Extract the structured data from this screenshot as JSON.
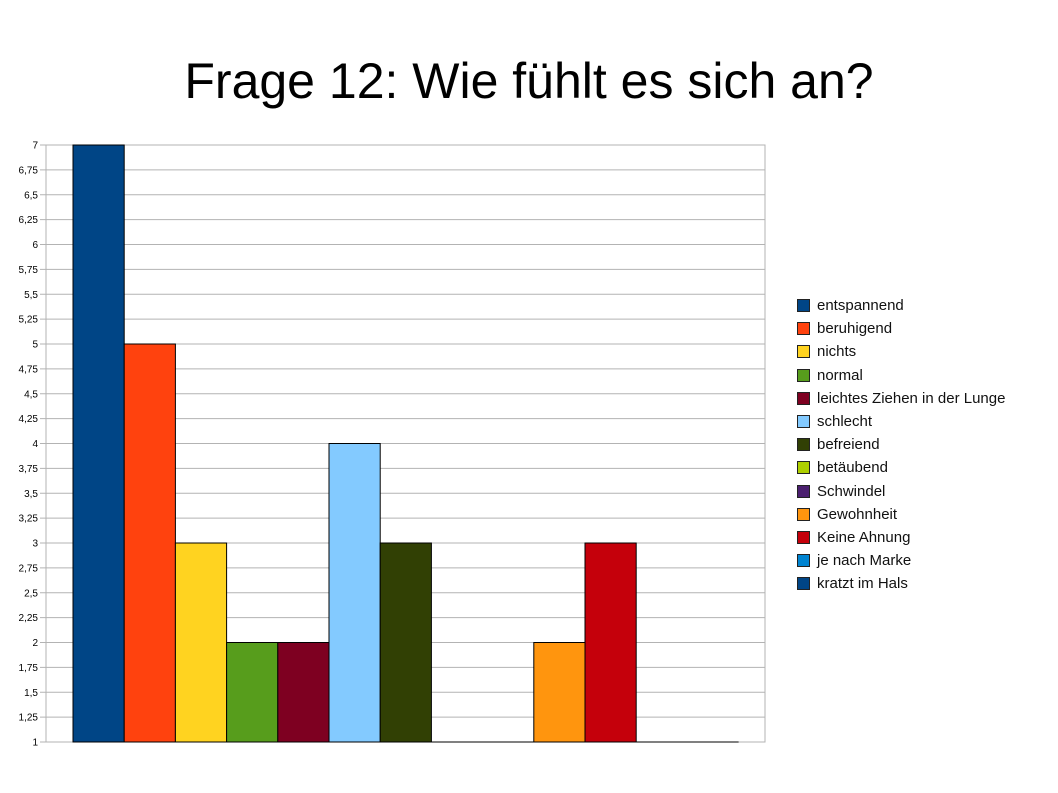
{
  "title": "Frage 12: Wie fühlt es sich an?",
  "chart_data": {
    "type": "bar",
    "ylim": [
      1,
      7
    ],
    "grid": true,
    "legend_position": "right",
    "y_ticks": [
      "7",
      "6,75",
      "6,5",
      "6,25",
      "6",
      "5,75",
      "5,5",
      "5,25",
      "5",
      "4,75",
      "4,5",
      "4,25",
      "4",
      "3,75",
      "3,5",
      "3,25",
      "3",
      "2,75",
      "2,5",
      "2,25",
      "2",
      "1,75",
      "1,5",
      "1,25",
      "1"
    ],
    "series": [
      {
        "name": "entspannend",
        "value": 7,
        "color": "#004586"
      },
      {
        "name": "beruhigend",
        "value": 5,
        "color": "#ff420e"
      },
      {
        "name": "nichts",
        "value": 3,
        "color": "#ffd320"
      },
      {
        "name": "normal",
        "value": 2,
        "color": "#579d1c"
      },
      {
        "name": "leichtes Ziehen in der Lunge",
        "value": 2,
        "color": "#7e0021"
      },
      {
        "name": "schlecht",
        "value": 4,
        "color": "#83caff"
      },
      {
        "name": "befreiend",
        "value": 3,
        "color": "#314004"
      },
      {
        "name": "betäubend",
        "value": 1,
        "color": "#aecf00"
      },
      {
        "name": "Schwindel",
        "value": 1,
        "color": "#4b1f6f"
      },
      {
        "name": "Gewohnheit",
        "value": 2,
        "color": "#ff950e"
      },
      {
        "name": "Keine Ahnung",
        "value": 3,
        "color": "#c5000b"
      },
      {
        "name": "je nach Marke",
        "value": 1,
        "color": "#0084d1"
      },
      {
        "name": "kratzt im Hals",
        "value": 1,
        "color": "#004586"
      }
    ]
  }
}
